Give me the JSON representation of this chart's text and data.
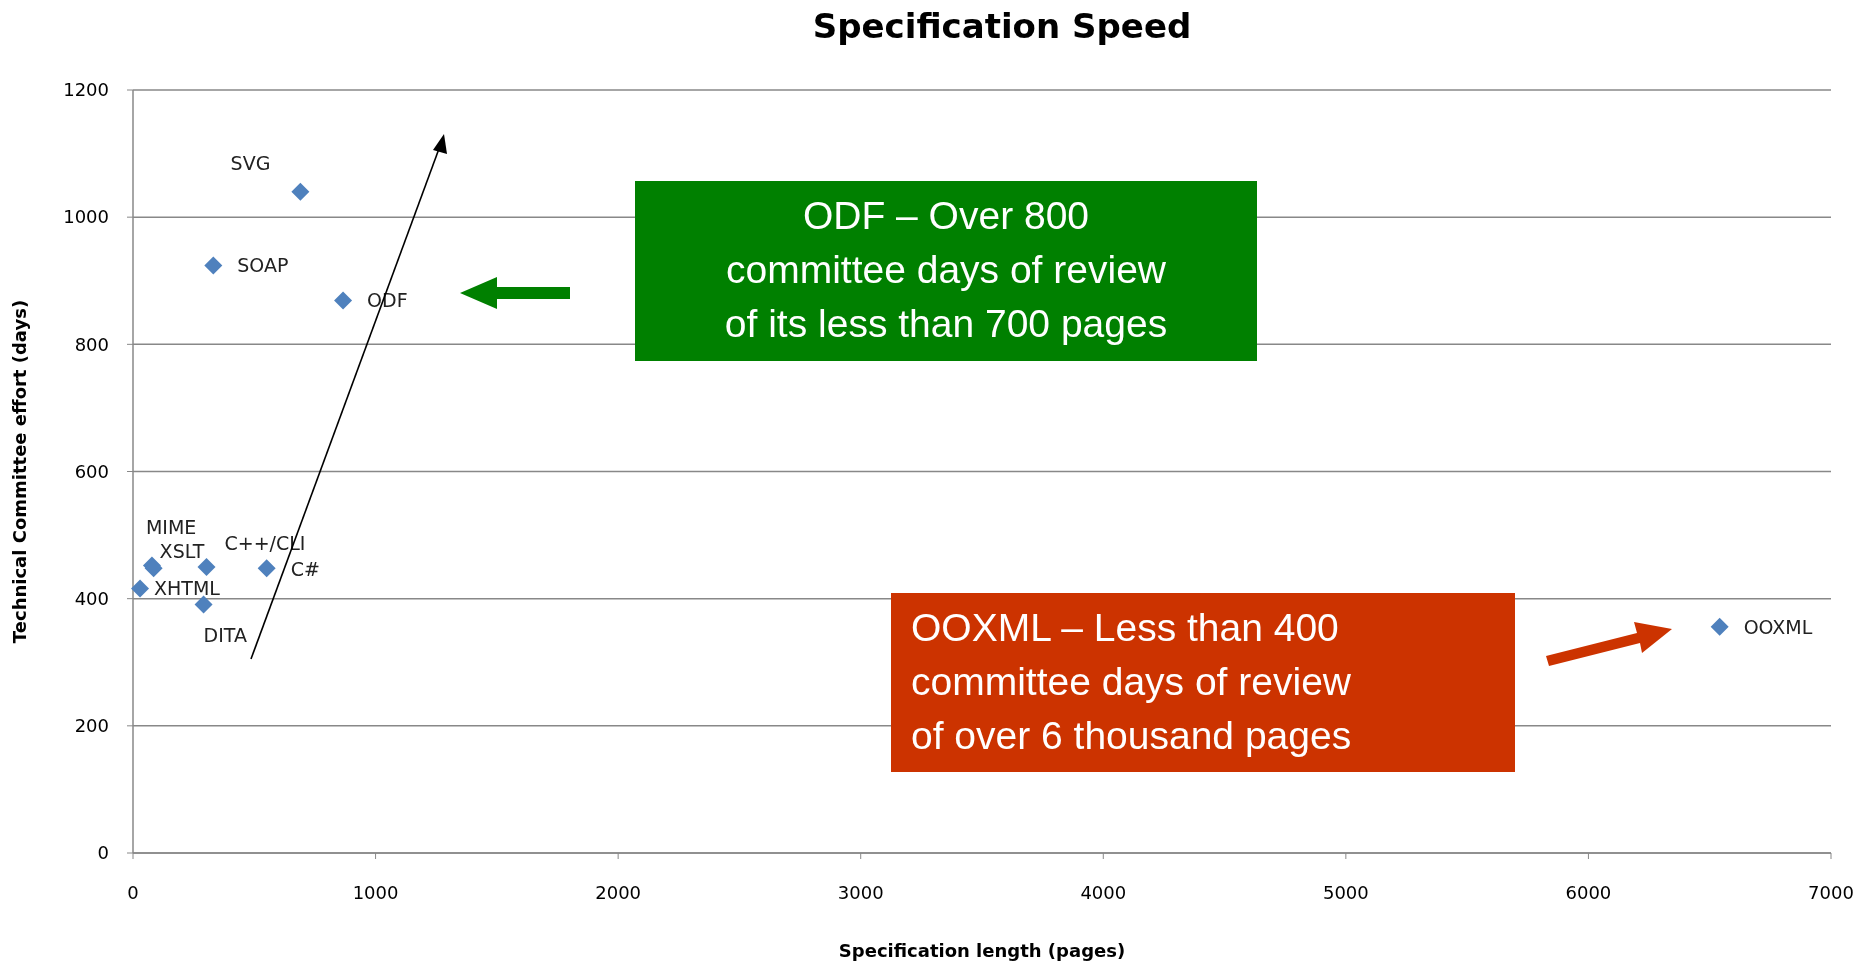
{
  "chart_data": {
    "type": "scatter",
    "title": "Specification Speed",
    "xlabel": "Specification length (pages)",
    "ylabel": "Technical Committee effort (days)",
    "series": [
      {
        "color": "#4f81bd",
        "x": [
          690,
          331,
          866,
          78,
          85,
          303,
          551,
          29,
          291,
          6541
        ],
        "values": [
          1040,
          924,
          869,
          452,
          448,
          450,
          448,
          416,
          391,
          356
        ]
      }
    ],
    "xlim": [
      0,
      7000
    ],
    "xticks": [
      0,
      1000,
      2000,
      3000,
      4000,
      5000,
      6000,
      7000
    ],
    "ylim": [
      0,
      1200
    ],
    "yticks": [
      0,
      200,
      400,
      600,
      800,
      1000,
      1200
    ],
    "grid": "y",
    "marker": "diamond",
    "annotations": [
      {
        "text": "SVG",
        "x": 690,
        "y": 1040
      },
      {
        "text": "SOAP",
        "x": 331,
        "y": 924
      },
      {
        "text": "ODF",
        "x": 866,
        "y": 869
      },
      {
        "text": "MIME",
        "x": 78,
        "y": 452
      },
      {
        "text": "XSLT",
        "x": 85,
        "y": 448
      },
      {
        "text": "C++/CLI",
        "x": 303,
        "y": 450
      },
      {
        "text": "C#",
        "x": 551,
        "y": 448
      },
      {
        "text": "XHTML",
        "x": 29,
        "y": 416
      },
      {
        "text": "DITA",
        "x": 291,
        "y": 391
      },
      {
        "text": "OOXML",
        "x": 6541,
        "y": 356
      },
      "ODF – Over 800 committee days of review of its less than 700 pages",
      "OOXML – Less than 400 committee days of review of over 6 thousand pages"
    ]
  }
}
